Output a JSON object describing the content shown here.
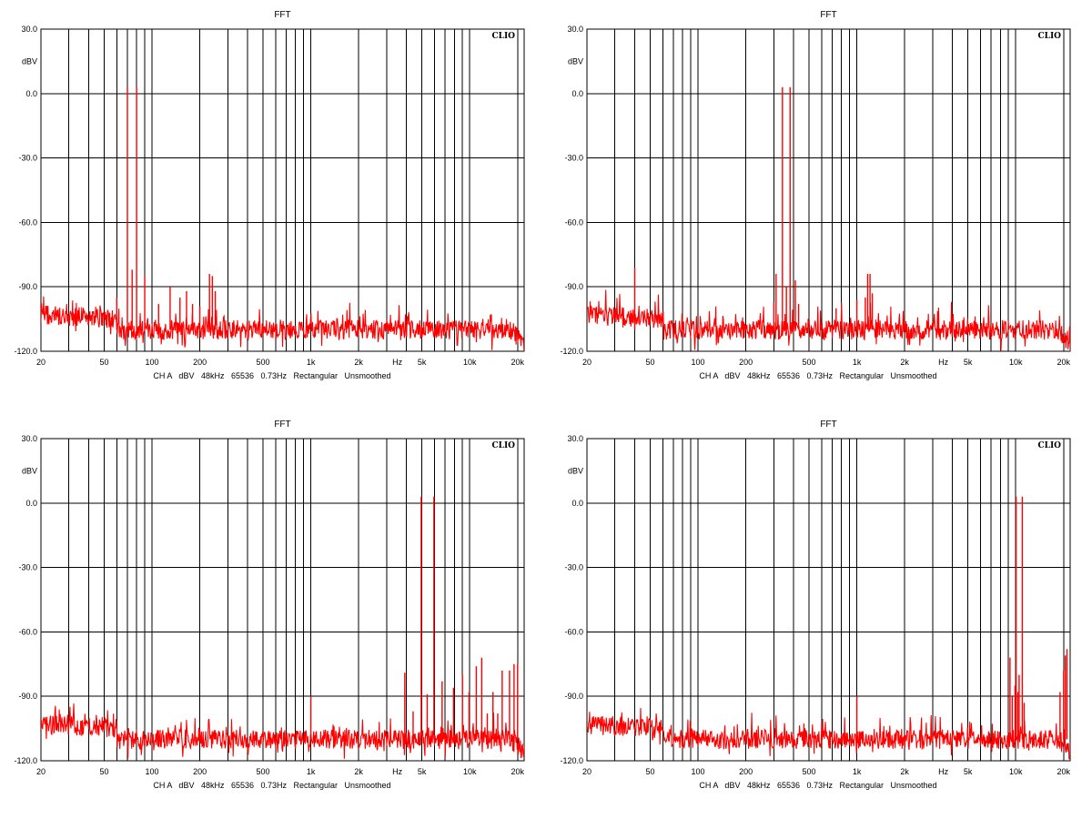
{
  "chart_data": [
    {
      "type": "line",
      "title": "FFT",
      "ylabel": "dBV",
      "xlabel": "Hz",
      "brand": "CLIO",
      "footer": "CH A   dBV   48kHz   65536   0.73Hz   Rectangular   Unsmoothed",
      "xscale": "log",
      "xlim": [
        20,
        22000
      ],
      "ylim": [
        -120,
        30
      ],
      "grid": true,
      "y_ticks": [
        "30.0",
        "0.0",
        "-30.0",
        "-60.0",
        "-90.0",
        "-120.0"
      ],
      "x_ticks": [
        "20",
        "50",
        "100",
        "200",
        "500",
        "1k",
        "2k",
        "Hz",
        "5k",
        "10k",
        "20k"
      ],
      "series_color": "#ff0000",
      "noise_floor_db": -110,
      "peaks": [
        {
          "x": 60,
          "y": -95
        },
        {
          "x": 70,
          "y": 3
        },
        {
          "x": 75,
          "y": -82
        },
        {
          "x": 80,
          "y": 3
        },
        {
          "x": 90,
          "y": -85
        },
        {
          "x": 110,
          "y": -98
        },
        {
          "x": 130,
          "y": -90
        },
        {
          "x": 150,
          "y": -95
        },
        {
          "x": 165,
          "y": -92
        },
        {
          "x": 180,
          "y": -98
        },
        {
          "x": 200,
          "y": -99
        },
        {
          "x": 230,
          "y": -84
        },
        {
          "x": 240,
          "y": -85
        },
        {
          "x": 250,
          "y": -92
        }
      ]
    },
    {
      "type": "line",
      "title": "FFT",
      "ylabel": "dBV",
      "xlabel": "Hz",
      "brand": "CLIO",
      "footer": "CH A   dBV   48kHz   65536   0.73Hz   Rectangular   Unsmoothed",
      "xscale": "log",
      "xlim": [
        20,
        22000
      ],
      "ylim": [
        -120,
        30
      ],
      "grid": true,
      "y_ticks": [
        "30.0",
        "0.0",
        "-30.0",
        "-60.0",
        "-90.0",
        "-120.0"
      ],
      "x_ticks": [
        "20",
        "50",
        "100",
        "200",
        "500",
        "1k",
        "2k",
        "Hz",
        "5k",
        "10k",
        "20k"
      ],
      "series_color": "#ff0000",
      "noise_floor_db": -110,
      "peaks": [
        {
          "x": 40,
          "y": -81
        },
        {
          "x": 300,
          "y": -97
        },
        {
          "x": 310,
          "y": -84
        },
        {
          "x": 340,
          "y": 3
        },
        {
          "x": 360,
          "y": -90
        },
        {
          "x": 380,
          "y": 3
        },
        {
          "x": 410,
          "y": -87
        },
        {
          "x": 430,
          "y": -98
        },
        {
          "x": 740,
          "y": -100
        },
        {
          "x": 1000,
          "y": -96
        },
        {
          "x": 1130,
          "y": -95
        },
        {
          "x": 1170,
          "y": -84
        },
        {
          "x": 1210,
          "y": -84
        },
        {
          "x": 1250,
          "y": -93
        }
      ]
    },
    {
      "type": "line",
      "title": "FFT",
      "ylabel": "dBV",
      "xlabel": "Hz",
      "brand": "CLIO",
      "footer": "CH A   dBV   48kHz   65536   0.73Hz   Rectangular   Unsmoothed",
      "xscale": "log",
      "xlim": [
        20,
        22000
      ],
      "ylim": [
        -120,
        30
      ],
      "grid": true,
      "y_ticks": [
        "30.0",
        "0.0",
        "-30.0",
        "-60.0",
        "-90.0",
        "-120.0"
      ],
      "x_ticks": [
        "20",
        "50",
        "100",
        "200",
        "500",
        "1k",
        "2k",
        "Hz",
        "5k",
        "10k",
        "20k"
      ],
      "series_color": "#ff0000",
      "noise_floor_db": -110,
      "peaks": [
        {
          "x": 1000,
          "y": -90
        },
        {
          "x": 3900,
          "y": -79
        },
        {
          "x": 4400,
          "y": -97
        },
        {
          "x": 4950,
          "y": 3
        },
        {
          "x": 5400,
          "y": -89
        },
        {
          "x": 5950,
          "y": 3
        },
        {
          "x": 6700,
          "y": -83
        },
        {
          "x": 7900,
          "y": -86
        },
        {
          "x": 9000,
          "y": -80
        },
        {
          "x": 9900,
          "y": -88
        },
        {
          "x": 11000,
          "y": -76
        },
        {
          "x": 11900,
          "y": -72
        },
        {
          "x": 12900,
          "y": -98
        },
        {
          "x": 14000,
          "y": -88
        },
        {
          "x": 15000,
          "y": -98
        },
        {
          "x": 16000,
          "y": -78
        },
        {
          "x": 17800,
          "y": -78
        },
        {
          "x": 19000,
          "y": -75
        },
        {
          "x": 20000,
          "y": -75
        }
      ]
    },
    {
      "type": "line",
      "title": "FFT",
      "ylabel": "dBV",
      "xlabel": "Hz",
      "brand": "CLIO",
      "footer": "CH A   dBV   48kHz   65536   0.73Hz   Rectangular   Unsmoothed",
      "xscale": "log",
      "xlim": [
        20,
        22000
      ],
      "ylim": [
        -120,
        30
      ],
      "grid": true,
      "y_ticks": [
        "30.0",
        "0.0",
        "-30.0",
        "-60.0",
        "-90.0",
        "-120.0"
      ],
      "x_ticks": [
        "20",
        "50",
        "100",
        "200",
        "500",
        "1k",
        "2k",
        "Hz",
        "5k",
        "10k",
        "20k"
      ],
      "series_color": "#ff0000",
      "noise_floor_db": -110,
      "peaks": [
        {
          "x": 1000,
          "y": -90
        },
        {
          "x": 9200,
          "y": -72
        },
        {
          "x": 9500,
          "y": -90
        },
        {
          "x": 9900,
          "y": -85
        },
        {
          "x": 10050,
          "y": 3
        },
        {
          "x": 10300,
          "y": -88
        },
        {
          "x": 10500,
          "y": -80
        },
        {
          "x": 11000,
          "y": 3
        },
        {
          "x": 11300,
          "y": -93
        },
        {
          "x": 19000,
          "y": -88
        },
        {
          "x": 20000,
          "y": -78
        },
        {
          "x": 20500,
          "y": -71
        },
        {
          "x": 21000,
          "y": -68
        }
      ]
    }
  ]
}
